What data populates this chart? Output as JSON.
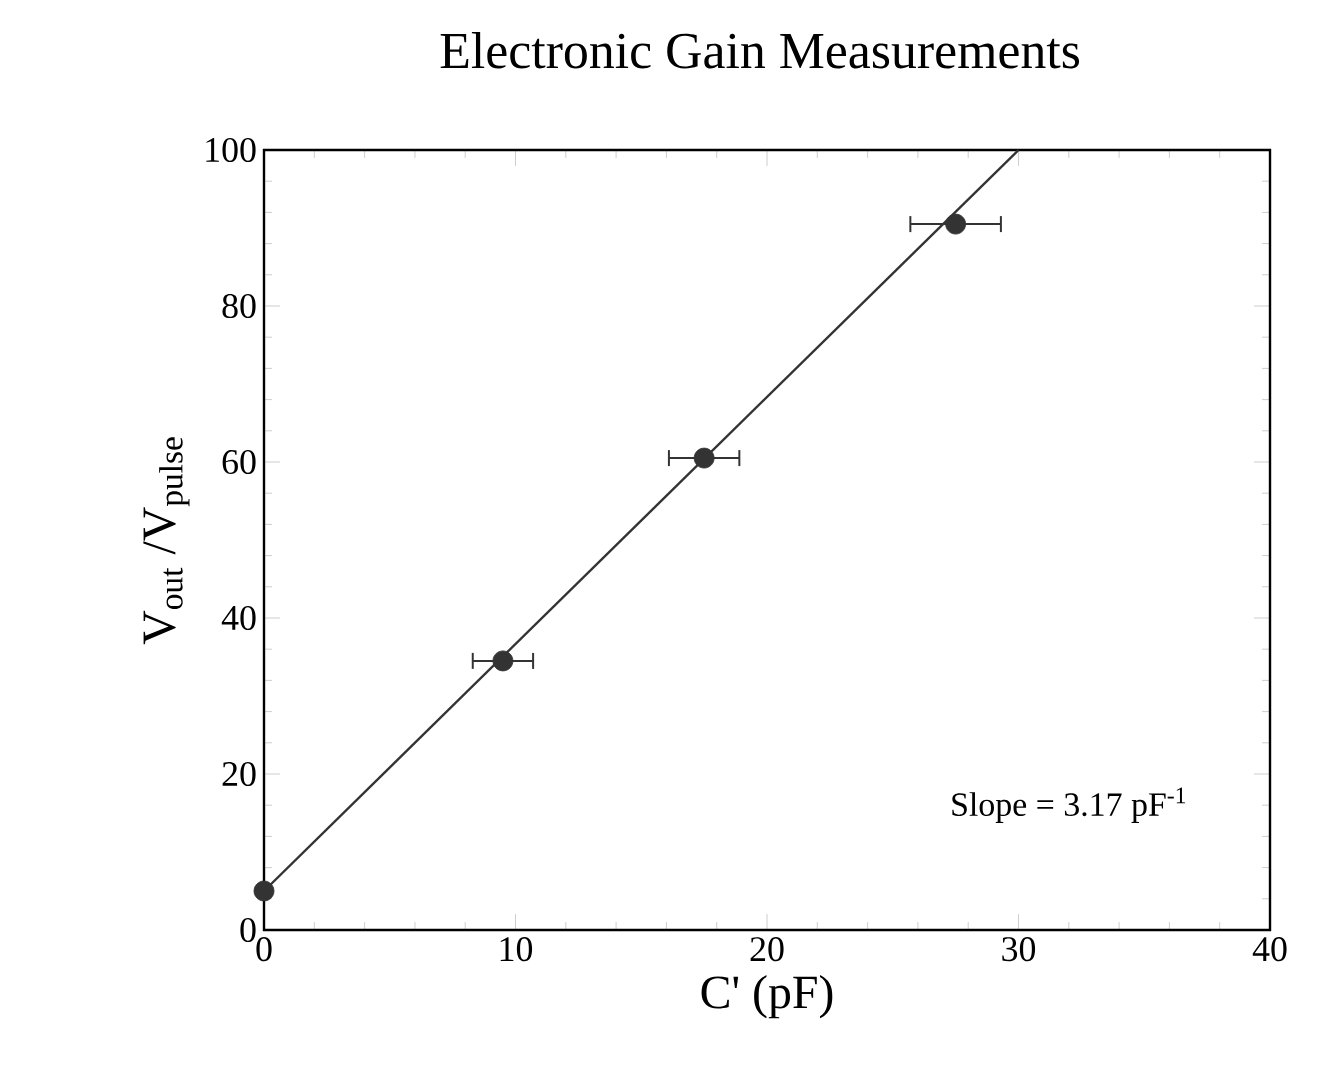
{
  "chart_data": {
    "type": "scatter",
    "title": "Electronic Gain Measurements",
    "xlabel": "C' (pF)",
    "ylabel": "V$_{out}$ /V$_{pulse}$",
    "xlim": [
      0,
      40
    ],
    "ylim": [
      0,
      100
    ],
    "xticks": [
      0,
      10,
      20,
      30,
      40
    ],
    "yticks": [
      0,
      20,
      40,
      60,
      80,
      100
    ],
    "marker": "circle",
    "grid": false,
    "series": [
      {
        "color": "#333333",
        "x": [
          0,
          9.5,
          17.5,
          27.5
        ],
        "values": [
          5,
          34.5,
          60.5,
          90.5
        ],
        "xerrors": [
          null,
          1.2,
          1.4,
          1.8
        ]
      },
      {
        "type": "line",
        "color": "#333333",
        "marker": "none",
        "line_style": "solid",
        "x": [
          0,
          30
        ],
        "values": [
          5,
          100
        ]
      }
    ],
    "annotations": [
      "Slope = 3.17 pF$^{-1}$"
    ]
  }
}
